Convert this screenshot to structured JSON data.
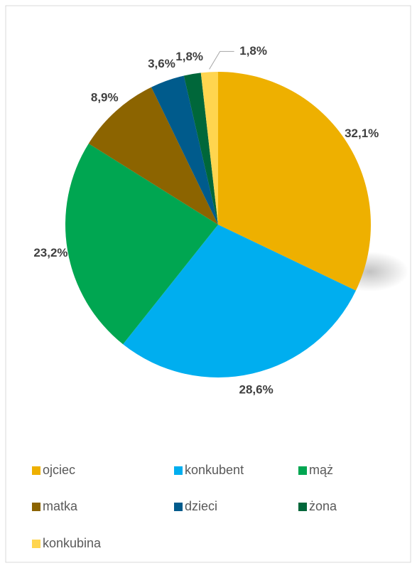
{
  "chart_data": {
    "type": "pie",
    "categories": [
      "ojciec",
      "konkubent",
      "mąż",
      "matka",
      "dzieci",
      "żona",
      "konkubina"
    ],
    "values": [
      32.1,
      28.6,
      23.2,
      8.9,
      3.6,
      1.8,
      1.8
    ],
    "value_labels": [
      "32,1%",
      "28,6%",
      "23,2%",
      "8,9%",
      "3,6%",
      "1,8%",
      "1,8%"
    ],
    "colors": [
      "#eeb000",
      "#00aeef",
      "#00a651",
      "#8c6400",
      "#005b8c",
      "#00673a",
      "#ffd54f"
    ],
    "legend": "bottom"
  }
}
